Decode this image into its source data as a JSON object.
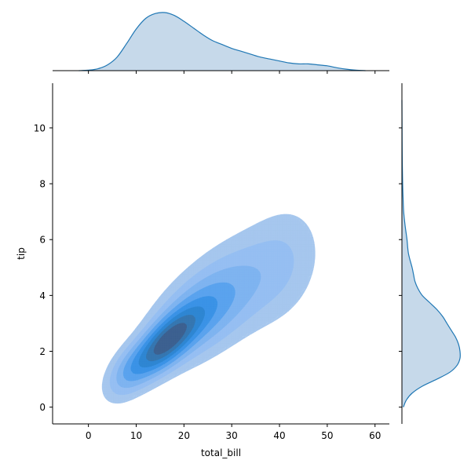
{
  "chart_data": {
    "type": "jointplot-kde",
    "xlabel": "total_bill",
    "ylabel": "tip",
    "xlim": [
      -7.5,
      63
    ],
    "ylim": [
      -0.6,
      11.6
    ],
    "xticks": [
      0,
      10,
      20,
      30,
      40,
      50,
      60
    ],
    "yticks": [
      0,
      2,
      4,
      6,
      8,
      10
    ],
    "grid": false,
    "legend": "none",
    "colors": {
      "marginal_fill": "#c6d9ea",
      "marginal_line": "#1f77b4",
      "joint_levels": [
        "#a6c7ee",
        "#96bff2",
        "#7fb4f0",
        "#5aa3ee",
        "#3b93e6",
        "#2f86d2",
        "#3677b1",
        "#3d6190"
      ]
    },
    "joint_density": {
      "components": [
        {
          "mean": [
            16.2,
            2.3
          ],
          "sd": [
            4.4,
            0.75
          ],
          "rho": 0.72,
          "weight": 1.0
        },
        {
          "mean": [
            23.0,
            3.3
          ],
          "sd": [
            6.0,
            1.0
          ],
          "rho": 0.55,
          "weight": 0.4
        },
        {
          "mean": [
            32.0,
            4.4
          ],
          "sd": [
            7.0,
            1.2
          ],
          "rho": 0.4,
          "weight": 0.16
        },
        {
          "mean": [
            41.0,
            5.2
          ],
          "sd": [
            5.0,
            1.3
          ],
          "rho": 0.2,
          "weight": 0.08
        },
        {
          "mean": [
            8.5,
            1.3
          ],
          "sd": [
            3.0,
            0.6
          ],
          "rho": 0.5,
          "weight": 0.22
        }
      ],
      "levels": [
        0.04,
        0.1,
        0.18,
        0.28,
        0.4,
        0.53,
        0.67,
        0.82
      ]
    },
    "marginal_x": {
      "x": [
        -2,
        0,
        2,
        4,
        6,
        8,
        10,
        12,
        14,
        16,
        18,
        20,
        22,
        24,
        26,
        28,
        30,
        32,
        34,
        36,
        38,
        40,
        42,
        44,
        46,
        48,
        50,
        52,
        54,
        56,
        58
      ],
      "density": [
        0.0,
        0.0005,
        0.002,
        0.006,
        0.014,
        0.028,
        0.043,
        0.054,
        0.059,
        0.06,
        0.057,
        0.051,
        0.044,
        0.037,
        0.031,
        0.027,
        0.023,
        0.02,
        0.017,
        0.014,
        0.012,
        0.01,
        0.008,
        0.007,
        0.007,
        0.006,
        0.005,
        0.003,
        0.0015,
        0.0005,
        0.0
      ]
    },
    "marginal_y": {
      "y": [
        0,
        0.25,
        0.5,
        0.75,
        1.0,
        1.25,
        1.5,
        1.75,
        2.0,
        2.25,
        2.5,
        2.75,
        3.0,
        3.25,
        3.5,
        3.75,
        4.0,
        4.25,
        4.5,
        4.75,
        5.0,
        5.5,
        6.0,
        6.5,
        7.0,
        7.5,
        8.0,
        9.0,
        10.0,
        11.0
      ],
      "density": [
        0.01,
        0.03,
        0.07,
        0.14,
        0.24,
        0.33,
        0.38,
        0.4,
        0.4,
        0.39,
        0.37,
        0.34,
        0.31,
        0.28,
        0.24,
        0.19,
        0.14,
        0.11,
        0.09,
        0.08,
        0.07,
        0.045,
        0.035,
        0.022,
        0.012,
        0.008,
        0.005,
        0.002,
        0.001,
        0.0
      ]
    }
  }
}
